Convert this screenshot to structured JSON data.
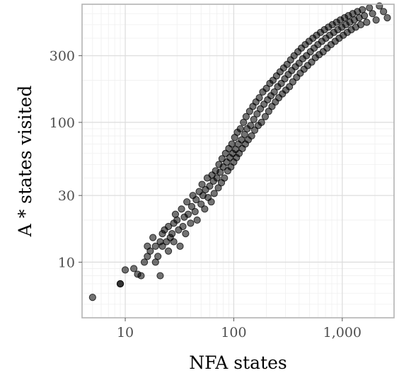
{
  "chart_data": {
    "type": "scatter",
    "title": "",
    "xlabel": "NFA states",
    "ylabel": "A * states visited",
    "xscale": "log",
    "yscale": "log",
    "xlim": [
      4,
      3000
    ],
    "ylim": [
      4,
      700
    ],
    "x_ticks": [
      10,
      100,
      1000
    ],
    "x_tick_labels": [
      "10",
      "100",
      "1,000"
    ],
    "y_ticks": [
      10,
      30,
      100,
      300
    ],
    "y_tick_labels": [
      "10",
      "30",
      "100",
      "300"
    ],
    "grid": true,
    "point_color": "#000000",
    "point_opacity": 0.55,
    "panel_border_color": "#b3b3b3",
    "grid_major_color": "#dcdcdc",
    "grid_minor_color": "#efefef",
    "points": [
      [
        5,
        5.6
      ],
      [
        9,
        7
      ],
      [
        9,
        7
      ],
      [
        10,
        8.8
      ],
      [
        12,
        9
      ],
      [
        13,
        8.2
      ],
      [
        14,
        8
      ],
      [
        15,
        10
      ],
      [
        16,
        11
      ],
      [
        16,
        13
      ],
      [
        17,
        12
      ],
      [
        18,
        15
      ],
      [
        19,
        10
      ],
      [
        19,
        13
      ],
      [
        20,
        11
      ],
      [
        21,
        8
      ],
      [
        21,
        14
      ],
      [
        22,
        16
      ],
      [
        22,
        13
      ],
      [
        23,
        17
      ],
      [
        24,
        14
      ],
      [
        25,
        18
      ],
      [
        25,
        12
      ],
      [
        26,
        15
      ],
      [
        27,
        16
      ],
      [
        28,
        19
      ],
      [
        28,
        14
      ],
      [
        29,
        22
      ],
      [
        30,
        20
      ],
      [
        31,
        17
      ],
      [
        32,
        13
      ],
      [
        33,
        24
      ],
      [
        34,
        18
      ],
      [
        35,
        21
      ],
      [
        36,
        16
      ],
      [
        37,
        27
      ],
      [
        38,
        22
      ],
      [
        40,
        19
      ],
      [
        41,
        25
      ],
      [
        42,
        30
      ],
      [
        44,
        23
      ],
      [
        45,
        28
      ],
      [
        46,
        20
      ],
      [
        48,
        32
      ],
      [
        50,
        26
      ],
      [
        51,
        36
      ],
      [
        52,
        30
      ],
      [
        54,
        24
      ],
      [
        55,
        33
      ],
      [
        57,
        40
      ],
      [
        58,
        29
      ],
      [
        60,
        35
      ],
      [
        62,
        27
      ],
      [
        63,
        42
      ],
      [
        65,
        38
      ],
      [
        66,
        31
      ],
      [
        68,
        45
      ],
      [
        70,
        40
      ],
      [
        72,
        34
      ],
      [
        73,
        50
      ],
      [
        75,
        44
      ],
      [
        77,
        37
      ],
      [
        78,
        55
      ],
      [
        80,
        48
      ],
      [
        82,
        40
      ],
      [
        84,
        60
      ],
      [
        86,
        52
      ],
      [
        88,
        45
      ],
      [
        90,
        65
      ],
      [
        92,
        56
      ],
      [
        94,
        48
      ],
      [
        96,
        70
      ],
      [
        98,
        60
      ],
      [
        100,
        52
      ],
      [
        102,
        78
      ],
      [
        104,
        64
      ],
      [
        106,
        56
      ],
      [
        108,
        85
      ],
      [
        110,
        70
      ],
      [
        112,
        60
      ],
      [
        115,
        90
      ],
      [
        118,
        75
      ],
      [
        120,
        65
      ],
      [
        123,
        100
      ],
      [
        126,
        82
      ],
      [
        128,
        70
      ],
      [
        130,
        110
      ],
      [
        133,
        90
      ],
      [
        136,
        75
      ],
      [
        140,
        120
      ],
      [
        143,
        95
      ],
      [
        146,
        80
      ],
      [
        150,
        130
      ],
      [
        153,
        105
      ],
      [
        156,
        88
      ],
      [
        160,
        140
      ],
      [
        164,
        115
      ],
      [
        168,
        95
      ],
      [
        172,
        150
      ],
      [
        176,
        125
      ],
      [
        180,
        100
      ],
      [
        185,
        165
      ],
      [
        190,
        135
      ],
      [
        195,
        110
      ],
      [
        200,
        175
      ],
      [
        205,
        145
      ],
      [
        210,
        120
      ],
      [
        215,
        190
      ],
      [
        220,
        155
      ],
      [
        225,
        130
      ],
      [
        230,
        200
      ],
      [
        236,
        165
      ],
      [
        242,
        140
      ],
      [
        248,
        215
      ],
      [
        254,
        180
      ],
      [
        260,
        150
      ],
      [
        267,
        230
      ],
      [
        274,
        190
      ],
      [
        281,
        160
      ],
      [
        288,
        245
      ],
      [
        295,
        205
      ],
      [
        302,
        170
      ],
      [
        310,
        260
      ],
      [
        318,
        220
      ],
      [
        326,
        180
      ],
      [
        334,
        280
      ],
      [
        342,
        235
      ],
      [
        350,
        195
      ],
      [
        360,
        300
      ],
      [
        370,
        250
      ],
      [
        380,
        210
      ],
      [
        390,
        320
      ],
      [
        400,
        265
      ],
      [
        410,
        225
      ],
      [
        420,
        340
      ],
      [
        432,
        285
      ],
      [
        444,
        240
      ],
      [
        456,
        360
      ],
      [
        468,
        300
      ],
      [
        480,
        255
      ],
      [
        494,
        380
      ],
      [
        508,
        320
      ],
      [
        522,
        270
      ],
      [
        536,
        400
      ],
      [
        550,
        340
      ],
      [
        565,
        290
      ],
      [
        580,
        420
      ],
      [
        596,
        360
      ],
      [
        612,
        305
      ],
      [
        630,
        440
      ],
      [
        648,
        380
      ],
      [
        666,
        320
      ],
      [
        685,
        460
      ],
      [
        705,
        400
      ],
      [
        725,
        340
      ],
      [
        745,
        480
      ],
      [
        766,
        420
      ],
      [
        788,
        360
      ],
      [
        810,
        500
      ],
      [
        835,
        440
      ],
      [
        860,
        380
      ],
      [
        885,
        520
      ],
      [
        910,
        460
      ],
      [
        935,
        400
      ],
      [
        960,
        540
      ],
      [
        990,
        480
      ],
      [
        1020,
        420
      ],
      [
        1050,
        560
      ],
      [
        1080,
        500
      ],
      [
        1110,
        440
      ],
      [
        1140,
        580
      ],
      [
        1175,
        520
      ],
      [
        1210,
        460
      ],
      [
        1250,
        600
      ],
      [
        1290,
        540
      ],
      [
        1330,
        480
      ],
      [
        1380,
        620
      ],
      [
        1430,
        560
      ],
      [
        1480,
        500
      ],
      [
        1530,
        640
      ],
      [
        1600,
        580
      ],
      [
        1680,
        520
      ],
      [
        1780,
        660
      ],
      [
        1900,
        600
      ],
      [
        2050,
        540
      ],
      [
        2200,
        680
      ],
      [
        2400,
        620
      ],
      [
        2600,
        560
      ]
    ]
  }
}
